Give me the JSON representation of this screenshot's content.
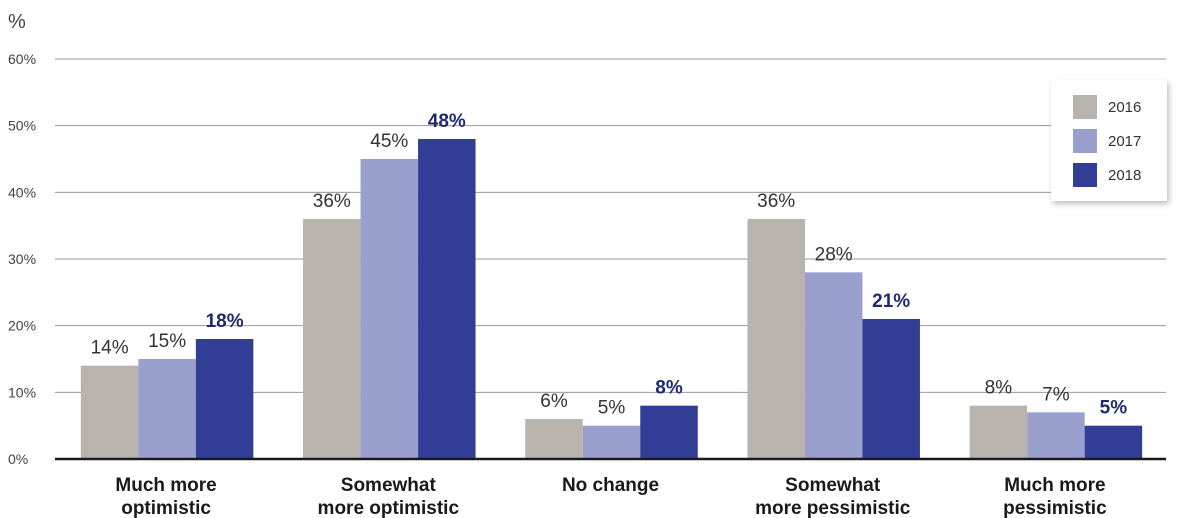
{
  "chart_data": {
    "type": "bar",
    "unit_label": "%",
    "categories": [
      [
        "Much more",
        "optimistic"
      ],
      [
        "Somewhat",
        "more optimistic"
      ],
      [
        "No change"
      ],
      [
        "Somewhat",
        "more pessimistic"
      ],
      [
        "Much more",
        "pessimistic"
      ]
    ],
    "series": [
      {
        "name": "2016",
        "values": [
          14,
          36,
          6,
          36,
          8
        ],
        "color": "#b8b3ad",
        "bold_labels": false
      },
      {
        "name": "2017",
        "values": [
          15,
          45,
          5,
          28,
          7
        ],
        "color": "#99a0ce",
        "bold_labels": false
      },
      {
        "name": "2018",
        "values": [
          18,
          48,
          8,
          21,
          5
        ],
        "color": "#323d96",
        "bold_labels": true
      }
    ],
    "ylim": [
      0,
      60
    ],
    "y_ticks": [
      0,
      10,
      20,
      30,
      40,
      50,
      60
    ],
    "y_tick_suffix": "%",
    "value_suffix": "%",
    "grid": true,
    "legend_position": "top-right"
  }
}
